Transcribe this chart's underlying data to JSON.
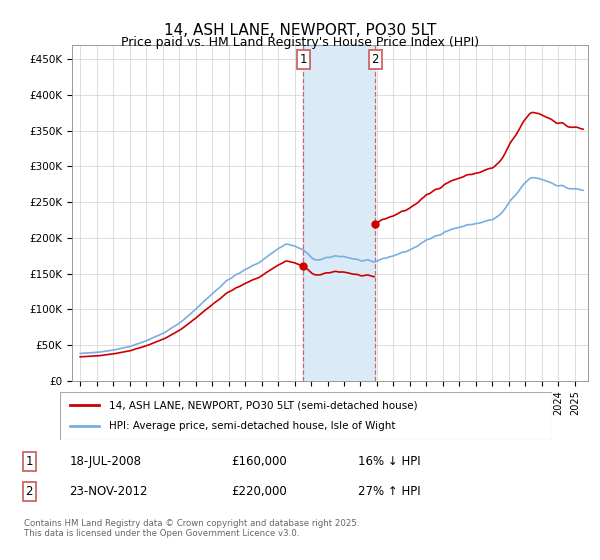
{
  "title": "14, ASH LANE, NEWPORT, PO30 5LT",
  "subtitle": "Price paid vs. HM Land Registry's House Price Index (HPI)",
  "legend_line1": "14, ASH LANE, NEWPORT, PO30 5LT (semi-detached house)",
  "legend_line2": "HPI: Average price, semi-detached house, Isle of Wight",
  "annotation1_date": "18-JUL-2008",
  "annotation1_price": "£160,000",
  "annotation1_hpi": "16% ↓ HPI",
  "annotation2_date": "23-NOV-2012",
  "annotation2_price": "£220,000",
  "annotation2_hpi": "27% ↑ HPI",
  "footer": "Contains HM Land Registry data © Crown copyright and database right 2025.\nThis data is licensed under the Open Government Licence v3.0.",
  "sale1_year": 2008.54,
  "sale1_value": 160000,
  "sale2_year": 2012.9,
  "sale2_value": 220000,
  "red_color": "#cc0000",
  "blue_color": "#7aade0",
  "shading_color": "#daeaf7",
  "vline_color": "#cc6666",
  "ylim_min": 0,
  "ylim_max": 470000,
  "xlim_min": 1994.5,
  "xlim_max": 2025.8,
  "figwidth": 6.0,
  "figheight": 5.6,
  "dpi": 100
}
